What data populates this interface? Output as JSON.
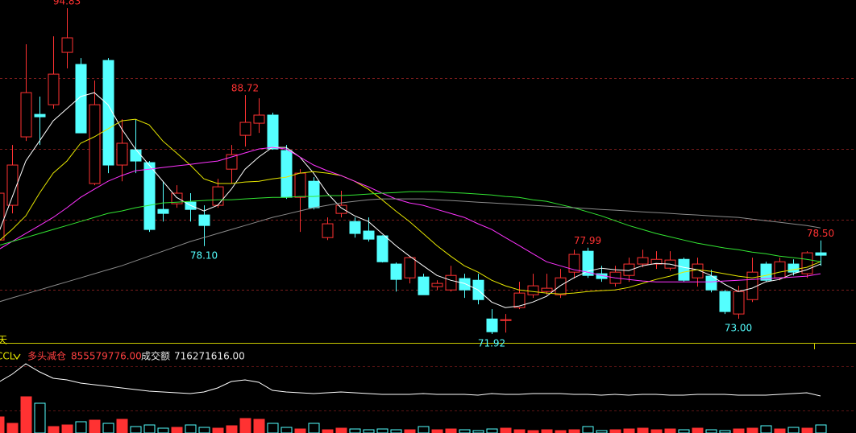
{
  "chart_data": [
    {
      "type": "candlestick",
      "ylim": [
        71.3,
        95.4
      ],
      "yticks": [
        75.03,
        79.95,
        84.93,
        89.91
      ],
      "grid": true,
      "up_color": "#ff3232",
      "down_color": "#54ffff",
      "period_label": "天",
      "open": [
        78.53,
        80.97,
        85.78,
        87.36,
        88.04,
        91.72,
        90.87,
        82.5,
        91.15,
        83.8,
        84.87,
        83.97,
        80.68,
        81.08,
        81.19,
        80.29,
        80.97,
        83.51,
        85.89,
        86.74,
        87.31,
        84.82,
        81.53,
        82.66,
        78.7,
        80.4,
        79.83,
        79.16,
        78.82,
        76.84,
        75.87,
        75.93,
        75.25,
        75.02,
        75.82,
        75.7,
        72.98,
        72.87,
        73.78,
        74.68,
        74.91,
        74.68,
        76.27,
        77.74,
        76.16,
        75.48,
        76.04,
        76.84,
        76.84,
        76.55,
        77.17,
        75.87,
        75.99,
        74.91,
        73.33,
        74.34,
        76.84,
        75.87,
        76.84,
        76.16,
        77.63
      ],
      "high": [
        84.93,
        85.21,
        92.29,
        88.61,
        92.85,
        94.83,
        91.32,
        89.74,
        91.32,
        87.02,
        87.02,
        84.08,
        82.66,
        82.38,
        81.82,
        80.97,
        82.83,
        85.21,
        88.72,
        88.49,
        87.48,
        85.21,
        83.51,
        82.95,
        80.12,
        81.99,
        80.12,
        80.12,
        78.87,
        76.95,
        77.4,
        76.16,
        75.7,
        76.72,
        76.16,
        76.16,
        73.67,
        73.33,
        75.59,
        76.16,
        76.16,
        76.5,
        77.85,
        77.99,
        76.72,
        76.72,
        77.29,
        77.85,
        77.74,
        77.74,
        77.29,
        77.29,
        76.44,
        75.02,
        75.31,
        77.29,
        77.0,
        77.29,
        77.17,
        77.74,
        78.5
      ],
      "low": [
        78.42,
        80.4,
        85.49,
        85.21,
        87.76,
        90.59,
        86.06,
        82.38,
        83.23,
        82.66,
        83.23,
        79.1,
        79.83,
        80.8,
        79.83,
        78.1,
        80.8,
        82.5,
        85.1,
        86.06,
        84.87,
        81.42,
        79.1,
        80.68,
        78.53,
        80.12,
        78.7,
        78.42,
        76.95,
        74.91,
        75.48,
        74.68,
        75.02,
        74.91,
        74.46,
        74.01,
        71.92,
        72.02,
        73.67,
        74.46,
        74.68,
        74.46,
        75.82,
        75.87,
        75.59,
        75.25,
        75.59,
        76.61,
        76.5,
        76.38,
        75.59,
        75.25,
        74.85,
        73.33,
        73.0,
        74.17,
        75.59,
        75.7,
        76.04,
        75.87,
        76.72
      ],
      "close": [
        81.82,
        83.8,
        88.89,
        87.19,
        90.19,
        92.74,
        86.06,
        88.04,
        83.8,
        85.33,
        84.08,
        79.27,
        80.4,
        81.82,
        80.68,
        79.55,
        82.27,
        84.53,
        86.8,
        87.31,
        84.93,
        81.53,
        83.23,
        80.8,
        79.67,
        80.97,
        78.99,
        78.59,
        77.0,
        75.76,
        77.29,
        74.68,
        75.48,
        76.04,
        75.02,
        74.34,
        72.08,
        72.93,
        74.8,
        75.31,
        75.14,
        75.87,
        77.52,
        76.04,
        75.82,
        76.27,
        76.84,
        77.29,
        77.17,
        77.12,
        75.7,
        76.84,
        75.02,
        73.5,
        74.91,
        76.27,
        75.7,
        77.0,
        76.27,
        77.63,
        77.46
      ],
      "high_labels": [
        null,
        null,
        null,
        null,
        null,
        "94.83",
        null,
        null,
        null,
        null,
        null,
        null,
        null,
        null,
        null,
        null,
        null,
        null,
        "88.72",
        null,
        null,
        null,
        null,
        null,
        null,
        null,
        null,
        null,
        null,
        null,
        null,
        null,
        null,
        null,
        null,
        null,
        null,
        null,
        null,
        null,
        null,
        null,
        null,
        "77.99",
        null,
        null,
        null,
        null,
        null,
        null,
        null,
        null,
        null,
        null,
        null,
        null,
        null,
        null,
        null,
        null,
        "78.50"
      ],
      "low_labels": [
        null,
        null,
        null,
        null,
        null,
        null,
        null,
        null,
        null,
        null,
        null,
        null,
        null,
        null,
        null,
        "78.10",
        null,
        null,
        null,
        null,
        null,
        null,
        null,
        null,
        null,
        null,
        null,
        null,
        null,
        null,
        null,
        null,
        null,
        null,
        null,
        null,
        "71.92",
        null,
        null,
        null,
        null,
        null,
        null,
        null,
        null,
        null,
        null,
        null,
        null,
        null,
        null,
        null,
        null,
        null,
        "73.00",
        null,
        null,
        null,
        null,
        null,
        null
      ],
      "series": [
        {
          "color": "#ffffff",
          "values": [
            78.99,
            81.53,
            84.08,
            85.49,
            86.91,
            87.76,
            88.61,
            88.89,
            88.04,
            86.34,
            84.93,
            83.8,
            82.66,
            81.53,
            80.97,
            80.57,
            80.97,
            82.1,
            83.51,
            84.36,
            85.04,
            85.04,
            84.36,
            83.23,
            81.82,
            80.8,
            80.23,
            79.83,
            78.99,
            78.14,
            77.4,
            76.72,
            76.04,
            75.7,
            75.48,
            75.02,
            74.17,
            73.78,
            73.89,
            74.17,
            74.57,
            75.31,
            75.87,
            76.33,
            76.55,
            76.44,
            76.38,
            76.72,
            76.89,
            76.84,
            76.61,
            76.44,
            76.04,
            75.42,
            74.91,
            75.14,
            75.59,
            75.76,
            76.16,
            76.44,
            76.84
          ]
        },
        {
          "color": "#e6e600",
          "values": [
            78.42,
            79.27,
            80.23,
            81.82,
            83.23,
            84.08,
            85.33,
            85.78,
            86.34,
            86.91,
            87.02,
            86.63,
            85.49,
            84.65,
            83.8,
            82.83,
            82.5,
            82.5,
            82.61,
            82.66,
            82.83,
            82.95,
            83.23,
            83.34,
            83.23,
            83.06,
            82.66,
            82.1,
            81.36,
            80.57,
            79.83,
            78.99,
            78.14,
            77.4,
            76.72,
            76.27,
            75.7,
            75.31,
            75.02,
            74.91,
            74.8,
            74.74,
            74.8,
            74.91,
            74.97,
            75.02,
            75.19,
            75.48,
            75.76,
            75.99,
            76.27,
            76.44,
            76.33,
            76.16,
            75.99,
            75.87,
            76.04,
            76.27,
            76.44,
            76.61,
            77.0
          ]
        },
        {
          "color": "#ff33ff",
          "values": [
            77.85,
            78.42,
            78.99,
            79.55,
            80.12,
            80.8,
            81.53,
            82.1,
            82.66,
            83.06,
            83.4,
            83.51,
            83.63,
            83.74,
            83.85,
            83.97,
            84.08,
            84.36,
            84.65,
            84.93,
            85.04,
            84.93,
            84.36,
            83.8,
            83.4,
            83.06,
            82.66,
            82.27,
            81.82,
            81.42,
            81.14,
            80.97,
            80.68,
            80.4,
            80.12,
            79.67,
            79.27,
            78.7,
            78.14,
            77.57,
            77.0,
            76.72,
            76.44,
            76.27,
            76.04,
            75.87,
            75.76,
            75.65,
            75.59,
            75.59,
            75.59,
            75.59,
            75.59,
            75.65,
            75.7,
            75.76,
            75.82,
            75.87,
            75.93,
            75.99,
            76.16
          ]
        },
        {
          "color": "#33e633",
          "values": [
            78.14,
            78.42,
            78.7,
            78.99,
            79.27,
            79.55,
            79.83,
            80.12,
            80.4,
            80.57,
            80.8,
            80.97,
            81.14,
            81.19,
            81.25,
            81.31,
            81.36,
            81.36,
            81.42,
            81.48,
            81.53,
            81.53,
            81.59,
            81.59,
            81.65,
            81.65,
            81.7,
            81.76,
            81.82,
            81.87,
            81.93,
            81.93,
            81.93,
            81.87,
            81.82,
            81.76,
            81.7,
            81.59,
            81.53,
            81.36,
            81.25,
            81.02,
            80.8,
            80.51,
            80.23,
            79.89,
            79.55,
            79.27,
            78.99,
            78.76,
            78.53,
            78.31,
            78.14,
            77.97,
            77.85,
            77.68,
            77.57,
            77.4,
            77.29,
            77.17,
            77.0
          ]
        },
        {
          "color": "#8c8c8c",
          "values": [
            74.17,
            74.46,
            74.74,
            75.02,
            75.31,
            75.59,
            75.87,
            76.16,
            76.44,
            76.72,
            77.06,
            77.4,
            77.74,
            78.08,
            78.42,
            78.7,
            78.99,
            79.27,
            79.55,
            79.83,
            80.12,
            80.34,
            80.57,
            80.8,
            80.97,
            81.14,
            81.25,
            81.36,
            81.42,
            81.42,
            81.42,
            81.42,
            81.36,
            81.31,
            81.25,
            81.19,
            81.14,
            81.08,
            81.02,
            80.97,
            80.91,
            80.85,
            80.8,
            80.74,
            80.68,
            80.63,
            80.57,
            80.51,
            80.46,
            80.4,
            80.34,
            80.29,
            80.23,
            80.17,
            80.12,
            80.0,
            79.89,
            79.78,
            79.66,
            79.55,
            79.38
          ]
        }
      ]
    },
    {
      "type": "volume",
      "title": "CCL",
      "ylim": [
        0,
        1674000000
      ],
      "y2lim": [
        0,
        6444000000
      ],
      "series": [
        {
          "name": "多头减仓",
          "color": "#ffffff",
          "values": [
            1171800000,
            1357800000,
            1599600000,
            1413600000,
            1264800000,
            1227600000,
            1153200000,
            1116000000,
            1078800000,
            1041600000,
            1004400000,
            967200000,
            948600000,
            930000000,
            911400000,
            948600000,
            1041600000,
            1190400000,
            1227600000,
            1171800000,
            985800000,
            948600000,
            930000000,
            911400000,
            930000000,
            948600000,
            930000000,
            911400000,
            892800000,
            892800000,
            892800000,
            911400000,
            892800000,
            892800000,
            892800000,
            874200000,
            911400000,
            892800000,
            892800000,
            911400000,
            911400000,
            911400000,
            892800000,
            892800000,
            874200000,
            892800000,
            874200000,
            892800000,
            892800000,
            874200000,
            874200000,
            892800000,
            892800000,
            892800000,
            874200000,
            874200000,
            874200000,
            892800000,
            911400000,
            930000000,
            855579776
          ],
          "value_labels": [
            null,
            null,
            null,
            null,
            null,
            null,
            null,
            null,
            null,
            null,
            null,
            null,
            null,
            null,
            null,
            null,
            null,
            null,
            null,
            null,
            null,
            null,
            null,
            null,
            null,
            null,
            null,
            null,
            null,
            null,
            null,
            null,
            null,
            null,
            null,
            null,
            null,
            null,
            null,
            null,
            null,
            null,
            null,
            null,
            null,
            null,
            null,
            null,
            null,
            null,
            null,
            null,
            null,
            null,
            null,
            null,
            null,
            null,
            null,
            null,
            "855579776.00"
          ]
        },
        {
          "name": "成交额",
          "axis": "y2",
          "values": [
            1432000000,
            859200000,
            3222000000,
            2649200000,
            572800000,
            716000000,
            1002400000,
            1145600000,
            859200000,
            1217200000,
            572800000,
            716000000,
            429600000,
            501200000,
            716000000,
            501200000,
            429600000,
            644400000,
            1288800000,
            1217200000,
            859200000,
            501200000,
            358000000,
            859200000,
            286400000,
            429600000,
            358000000,
            286400000,
            358000000,
            286400000,
            286400000,
            572800000,
            286400000,
            358000000,
            286400000,
            214800000,
            358000000,
            429600000,
            286400000,
            214800000,
            286400000,
            214800000,
            286400000,
            572800000,
            214800000,
            286400000,
            358000000,
            429600000,
            286400000,
            358000000,
            286400000,
            429600000,
            286400000,
            214800000,
            358000000,
            429600000,
            644400000,
            358000000,
            501200000,
            429600000,
            716271616
          ],
          "value_labels": [
            null,
            null,
            null,
            null,
            null,
            null,
            null,
            null,
            null,
            null,
            null,
            null,
            null,
            null,
            null,
            null,
            null,
            null,
            null,
            null,
            null,
            null,
            null,
            null,
            null,
            null,
            null,
            null,
            null,
            null,
            null,
            null,
            null,
            null,
            null,
            null,
            null,
            null,
            null,
            null,
            null,
            null,
            null,
            null,
            null,
            null,
            null,
            null,
            null,
            null,
            null,
            null,
            null,
            null,
            null,
            null,
            null,
            null,
            null,
            null,
            "716271616.00"
          ]
        }
      ]
    }
  ]
}
